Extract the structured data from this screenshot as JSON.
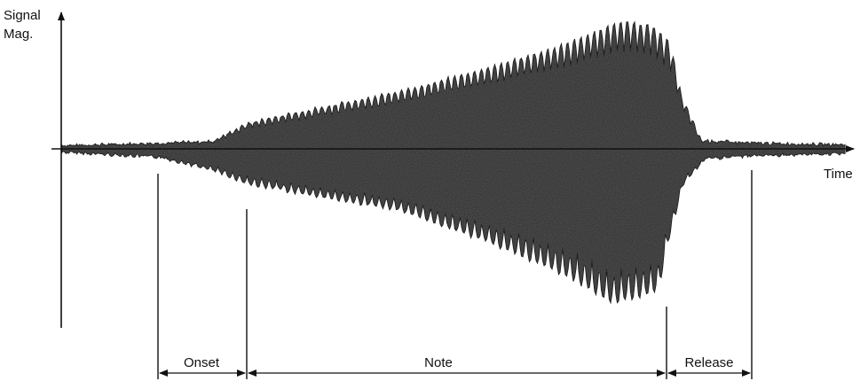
{
  "axis": {
    "y_label_line1": "Signal",
    "y_label_line2": "Mag.",
    "x_label": "Time"
  },
  "segments": [
    {
      "label": "Onset"
    },
    {
      "label": "Note"
    },
    {
      "label": "Release"
    }
  ],
  "colors": {
    "ink": "#111111",
    "envelope": "#2b2b2b"
  }
}
